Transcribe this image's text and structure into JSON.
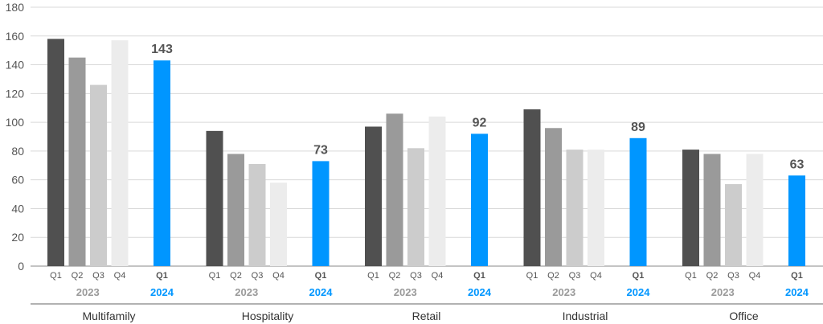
{
  "chart_data": {
    "type": "bar",
    "title": "",
    "xlabel": "",
    "ylabel": "",
    "ylim": [
      0,
      180
    ],
    "yticks": [
      0,
      20,
      40,
      60,
      80,
      100,
      120,
      140,
      160,
      180
    ],
    "grid": true,
    "legend": "none",
    "quarter_labels": [
      "Q1",
      "Q2",
      "Q3",
      "Q4"
    ],
    "highlight_quarter_label": "Q1",
    "year_prior": "2023",
    "year_current": "2024",
    "categories": [
      "Multifamily",
      "Hospitality",
      "Retail",
      "Industrial",
      "Office"
    ],
    "series": [
      {
        "quarter": "Q1",
        "year": "2023",
        "values": [
          158,
          94,
          97,
          109,
          81
        ]
      },
      {
        "quarter": "Q2",
        "year": "2023",
        "values": [
          145,
          78,
          106,
          96,
          78
        ]
      },
      {
        "quarter": "Q3",
        "year": "2023",
        "values": [
          126,
          71,
          82,
          81,
          57
        ]
      },
      {
        "quarter": "Q4",
        "year": "2023",
        "values": [
          157,
          58,
          104,
          81,
          78
        ]
      },
      {
        "quarter": "Q1",
        "year": "2024",
        "values": [
          143,
          73,
          92,
          89,
          63
        ],
        "data_labels": [
          "143",
          "73",
          "92",
          "89",
          "63"
        ]
      }
    ],
    "colors": {
      "q1_2023": "#505050",
      "q2_2023": "#9a9a9a",
      "q3_2023": "#cccccc",
      "q4_2023": "#ececec",
      "q1_2024": "#0096ff",
      "grid": "#d9d9d9",
      "axis": "#888888"
    }
  }
}
